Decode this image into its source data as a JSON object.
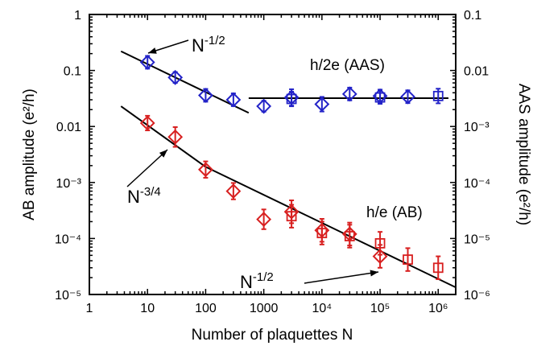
{
  "chart_data": {
    "type": "scatter",
    "xlabel": "Number of plaquettes N",
    "ylabel_left": "AB amplitude (e²/h)",
    "ylabel_right": "AAS amplitude (e²/h)",
    "xscale": "log",
    "yscale": "log",
    "xlim": [
      1,
      2000000
    ],
    "ylim_left": [
      1e-05,
      1
    ],
    "ylim_right": [
      1e-06,
      0.1
    ],
    "x_ticks": [
      "1",
      "10",
      "100",
      "1000",
      "10⁴",
      "10⁵",
      "10⁶"
    ],
    "y_ticks_left": [
      "1",
      "0.1",
      "0.01",
      "10⁻³",
      "10⁻⁴",
      "10⁻⁵"
    ],
    "y_ticks_right": [
      "0.1",
      "0.01",
      "10⁻³",
      "10⁻⁴",
      "10⁻⁵",
      "10⁻⁶"
    ],
    "series": [
      {
        "name": "h/2e (AAS)",
        "color": "#2323c8",
        "axis": "right",
        "points": [
          {
            "x": 10,
            "y": 0.014,
            "err": 1.3,
            "marker": "diamond"
          },
          {
            "x": 30,
            "y": 0.0075,
            "err": 1.25,
            "marker": "diamond"
          },
          {
            "x": 100,
            "y": 0.0036,
            "err": 1.3,
            "marker": "diamond"
          },
          {
            "x": 300,
            "y": 0.003,
            "err": 1.3,
            "marker": "diamond"
          },
          {
            "x": 1000,
            "y": 0.0023,
            "err": 1.25,
            "marker": "diamond"
          },
          {
            "x": 3000,
            "y": 0.0033,
            "err": 1.4,
            "marker": "diamond"
          },
          {
            "x": 3000,
            "y": 0.0031,
            "err": 1.35,
            "marker": "square"
          },
          {
            "x": 10000,
            "y": 0.0025,
            "err": 1.35,
            "marker": "diamond"
          },
          {
            "x": 30000,
            "y": 0.0038,
            "err": 1.3,
            "marker": "diamond"
          },
          {
            "x": 100000,
            "y": 0.0035,
            "err": 1.3,
            "marker": "diamond"
          },
          {
            "x": 100000,
            "y": 0.0033,
            "err": 1.3,
            "marker": "square"
          },
          {
            "x": 300000,
            "y": 0.0034,
            "err": 1.3,
            "marker": "diamond"
          },
          {
            "x": 1000000,
            "y": 0.0035,
            "err": 1.35,
            "marker": "square"
          }
        ]
      },
      {
        "name": "h/e (AB)",
        "color": "#d82020",
        "axis": "left",
        "points": [
          {
            "x": 10,
            "y": 0.0115,
            "err": 1.35,
            "marker": "diamond"
          },
          {
            "x": 30,
            "y": 0.0065,
            "err": 1.5,
            "marker": "diamond"
          },
          {
            "x": 100,
            "y": 0.0017,
            "err": 1.4,
            "marker": "diamond"
          },
          {
            "x": 300,
            "y": 0.0007,
            "err": 1.4,
            "marker": "diamond"
          },
          {
            "x": 1000,
            "y": 0.00022,
            "err": 1.5,
            "marker": "diamond"
          },
          {
            "x": 3000,
            "y": 0.0003,
            "err": 1.6,
            "marker": "diamond"
          },
          {
            "x": 3000,
            "y": 0.00025,
            "err": 1.6,
            "marker": "square"
          },
          {
            "x": 10000,
            "y": 0.00014,
            "err": 1.6,
            "marker": "diamond"
          },
          {
            "x": 10000,
            "y": 0.000125,
            "err": 1.6,
            "marker": "square"
          },
          {
            "x": 30000,
            "y": 0.00012,
            "err": 1.6,
            "marker": "diamond"
          },
          {
            "x": 30000,
            "y": 0.00011,
            "err": 1.6,
            "marker": "square"
          },
          {
            "x": 100000,
            "y": 4.8e-05,
            "err": 1.6,
            "marker": "diamond"
          },
          {
            "x": 100000,
            "y": 8.2e-05,
            "err": 1.6,
            "marker": "square"
          },
          {
            "x": 300000,
            "y": 4.2e-05,
            "err": 1.6,
            "marker": "square"
          },
          {
            "x": 1000000,
            "y": 3e-05,
            "err": 1.6,
            "marker": "square"
          }
        ]
      }
    ],
    "fit_lines": [
      {
        "label": "N^-1/2",
        "axis": "left",
        "x": [
          3.5,
          550
        ],
        "y": [
          0.22,
          0.0175
        ]
      },
      {
        "label": "N",
        "axis": "left",
        "x": [
          550,
          1500000
        ],
        "y": [
          0.032,
          0.032
        ]
      },
      {
        "label": "N^-3/4",
        "axis": "left",
        "x": [
          3.5,
          100
        ],
        "y": [
          0.023,
          0.0019
        ]
      },
      {
        "label": "N^-1/2",
        "axis": "left",
        "x": [
          100,
          2000000
        ],
        "y": [
          0.0019,
          1.34e-05
        ]
      }
    ],
    "annotations": [
      {
        "base": "N",
        "exp": "-1/2"
      },
      {
        "base": "N",
        "exp": "-3/4"
      },
      {
        "base": "N",
        "exp": "-1/2"
      }
    ],
    "legend": [
      {
        "text": "h/2e (AAS)",
        "color": "#2323c8"
      },
      {
        "text": "h/e (AB)",
        "color": "#d82020"
      }
    ]
  }
}
